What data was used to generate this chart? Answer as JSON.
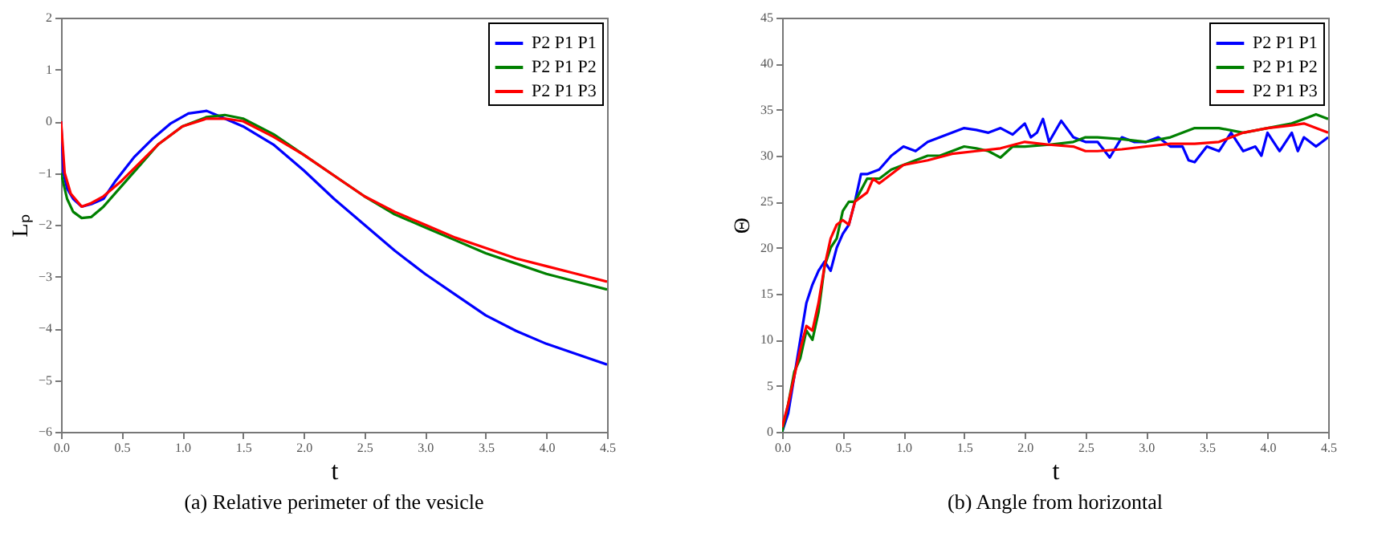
{
  "chart_data": [
    {
      "type": "line",
      "title": "(a) Relative perimeter of the vesicle",
      "xlabel": "t",
      "ylabel": "Lₚ",
      "xlim": [
        0,
        4.5
      ],
      "ylim": [
        -6,
        2
      ],
      "xticks": [
        {
          "value": 0,
          "label": "0.0"
        },
        0.5,
        {
          "value": 1,
          "label": "1.0"
        },
        1.5,
        {
          "value": 2,
          "label": "2.0"
        },
        2.5,
        {
          "value": 3,
          "label": "3.0"
        },
        3.5,
        {
          "value": 4,
          "label": "4.0"
        },
        4.5
      ],
      "yticks": [
        -6,
        -5,
        -4,
        -3,
        -2,
        -1,
        0,
        1,
        2
      ],
      "grid": false,
      "legend": "top right",
      "series": [
        {
          "name": "P2 P1 P1",
          "color": "#0000ff",
          "x": [
            0,
            0.02,
            0.05,
            0.1,
            0.17,
            0.25,
            0.35,
            0.45,
            0.6,
            0.75,
            0.9,
            1.05,
            1.2,
            1.3,
            1.5,
            1.75,
            2.0,
            2.25,
            2.5,
            2.75,
            3.0,
            3.25,
            3.5,
            3.75,
            4.0,
            4.25,
            4.5
          ],
          "values": [
            0,
            -1,
            -1.3,
            -1.5,
            -1.65,
            -1.6,
            -1.5,
            -1.15,
            -0.7,
            -0.35,
            -0.05,
            0.15,
            0.2,
            0.1,
            -0.1,
            -0.45,
            -0.95,
            -1.5,
            -2.0,
            -2.5,
            -2.95,
            -3.35,
            -3.75,
            -4.05,
            -4.3,
            -4.5,
            -4.7
          ]
        },
        {
          "name": "P2 P1 P2",
          "color": "#008000",
          "x": [
            0,
            0.05,
            0.1,
            0.17,
            0.25,
            0.35,
            0.5,
            0.65,
            0.8,
            1.0,
            1.2,
            1.35,
            1.5,
            1.75,
            2.0,
            2.25,
            2.5,
            2.75,
            3.0,
            3.25,
            3.5,
            3.75,
            4.0,
            4.25,
            4.5
          ],
          "values": [
            -1.0,
            -1.5,
            -1.75,
            -1.87,
            -1.85,
            -1.65,
            -1.25,
            -0.85,
            -0.45,
            -0.1,
            0.08,
            0.12,
            0.05,
            -0.25,
            -0.65,
            -1.05,
            -1.45,
            -1.8,
            -2.05,
            -2.3,
            -2.55,
            -2.75,
            -2.95,
            -3.1,
            -3.25
          ]
        },
        {
          "name": "P2 P1 P3",
          "color": "#ff0000",
          "x": [
            0,
            0.03,
            0.08,
            0.17,
            0.25,
            0.35,
            0.5,
            0.65,
            0.8,
            1.0,
            1.2,
            1.35,
            1.5,
            1.75,
            2.0,
            2.25,
            2.5,
            2.75,
            3.0,
            3.25,
            3.5,
            3.75,
            4.0,
            4.25,
            4.5
          ],
          "values": [
            0,
            -1.0,
            -1.4,
            -1.65,
            -1.58,
            -1.45,
            -1.15,
            -0.8,
            -0.45,
            -0.1,
            0.05,
            0.05,
            0.0,
            -0.3,
            -0.65,
            -1.05,
            -1.45,
            -1.75,
            -2.0,
            -2.25,
            -2.45,
            -2.65,
            -2.8,
            -2.95,
            -3.1
          ]
        }
      ]
    },
    {
      "type": "line",
      "title": "(b) Angle from horizontal",
      "xlabel": "t",
      "ylabel": "Θ",
      "xlim": [
        0,
        4.5
      ],
      "ylim": [
        0,
        45
      ],
      "xticks": [
        {
          "value": 0,
          "label": "0.0"
        },
        0.5,
        {
          "value": 1,
          "label": "1.0"
        },
        1.5,
        {
          "value": 2,
          "label": "2.0"
        },
        2.5,
        {
          "value": 3,
          "label": "3.0"
        },
        3.5,
        {
          "value": 4,
          "label": "4.0"
        },
        4.5
      ],
      "yticks": [
        0,
        5,
        10,
        15,
        20,
        25,
        30,
        35,
        40,
        45
      ],
      "grid": false,
      "legend": "top right",
      "series": [
        {
          "name": "P2 P1 P1",
          "color": "#0000ff",
          "x": [
            0,
            0.05,
            0.1,
            0.15,
            0.2,
            0.25,
            0.3,
            0.35,
            0.4,
            0.45,
            0.5,
            0.55,
            0.6,
            0.65,
            0.7,
            0.8,
            0.9,
            1.0,
            1.1,
            1.2,
            1.3,
            1.4,
            1.5,
            1.6,
            1.7,
            1.8,
            1.9,
            2.0,
            2.05,
            2.1,
            2.15,
            2.2,
            2.3,
            2.4,
            2.5,
            2.6,
            2.7,
            2.8,
            2.9,
            3.0,
            3.1,
            3.2,
            3.3,
            3.35,
            3.4,
            3.5,
            3.6,
            3.7,
            3.8,
            3.9,
            3.95,
            4.0,
            4.1,
            4.2,
            4.25,
            4.3,
            4.4,
            4.5
          ],
          "values": [
            0,
            2,
            6,
            10,
            14,
            16,
            17.5,
            18.5,
            17.5,
            20,
            21.5,
            22.5,
            25,
            28,
            28,
            28.5,
            30,
            31,
            30.5,
            31.5,
            32,
            32.5,
            33,
            32.8,
            32.5,
            33,
            32.3,
            33.5,
            32,
            32.5,
            34,
            31.5,
            33.8,
            32,
            31.5,
            31.5,
            29.8,
            32,
            31.5,
            31.5,
            32,
            31,
            31,
            29.5,
            29.3,
            31,
            30.5,
            32.5,
            30.5,
            31,
            30,
            32.5,
            30.5,
            32.5,
            30.5,
            32,
            31,
            32
          ]
        },
        {
          "name": "P2 P1 P2",
          "color": "#008000",
          "x": [
            0,
            0.05,
            0.1,
            0.15,
            0.2,
            0.25,
            0.3,
            0.35,
            0.4,
            0.45,
            0.5,
            0.55,
            0.6,
            0.7,
            0.8,
            0.9,
            1.0,
            1.1,
            1.2,
            1.3,
            1.4,
            1.5,
            1.6,
            1.7,
            1.8,
            1.9,
            2.0,
            2.2,
            2.4,
            2.5,
            2.6,
            2.8,
            3.0,
            3.2,
            3.4,
            3.6,
            3.8,
            4.0,
            4.2,
            4.3,
            4.4,
            4.5
          ],
          "values": [
            0,
            3,
            6.5,
            8,
            11,
            10,
            13,
            18,
            20,
            21,
            24,
            25,
            25,
            27.5,
            27.5,
            28.5,
            29,
            29.5,
            30,
            30,
            30.5,
            31,
            30.8,
            30.5,
            29.8,
            31,
            31,
            31.2,
            31.5,
            32,
            32,
            31.8,
            31.5,
            32,
            33,
            33,
            32.5,
            33,
            33.5,
            34,
            34.5,
            34
          ]
        },
        {
          "name": "P2 P1 P3",
          "color": "#ff0000",
          "x": [
            0,
            0.05,
            0.1,
            0.15,
            0.2,
            0.25,
            0.3,
            0.35,
            0.4,
            0.45,
            0.5,
            0.55,
            0.6,
            0.7,
            0.75,
            0.8,
            0.9,
            1.0,
            1.2,
            1.4,
            1.6,
            1.8,
            2.0,
            2.2,
            2.4,
            2.5,
            2.6,
            2.8,
            3.0,
            3.2,
            3.4,
            3.6,
            3.8,
            4.0,
            4.2,
            4.3,
            4.4,
            4.5
          ],
          "values": [
            0.5,
            3,
            6,
            9,
            11.5,
            11,
            14,
            18,
            21,
            22.5,
            23,
            22.5,
            25,
            26,
            27.5,
            27,
            28,
            29,
            29.5,
            30.2,
            30.5,
            30.8,
            31.5,
            31.2,
            31,
            30.5,
            30.5,
            30.7,
            31,
            31.3,
            31.3,
            31.5,
            32.5,
            33,
            33.3,
            33.5,
            33,
            32.5
          ]
        }
      ]
    }
  ]
}
